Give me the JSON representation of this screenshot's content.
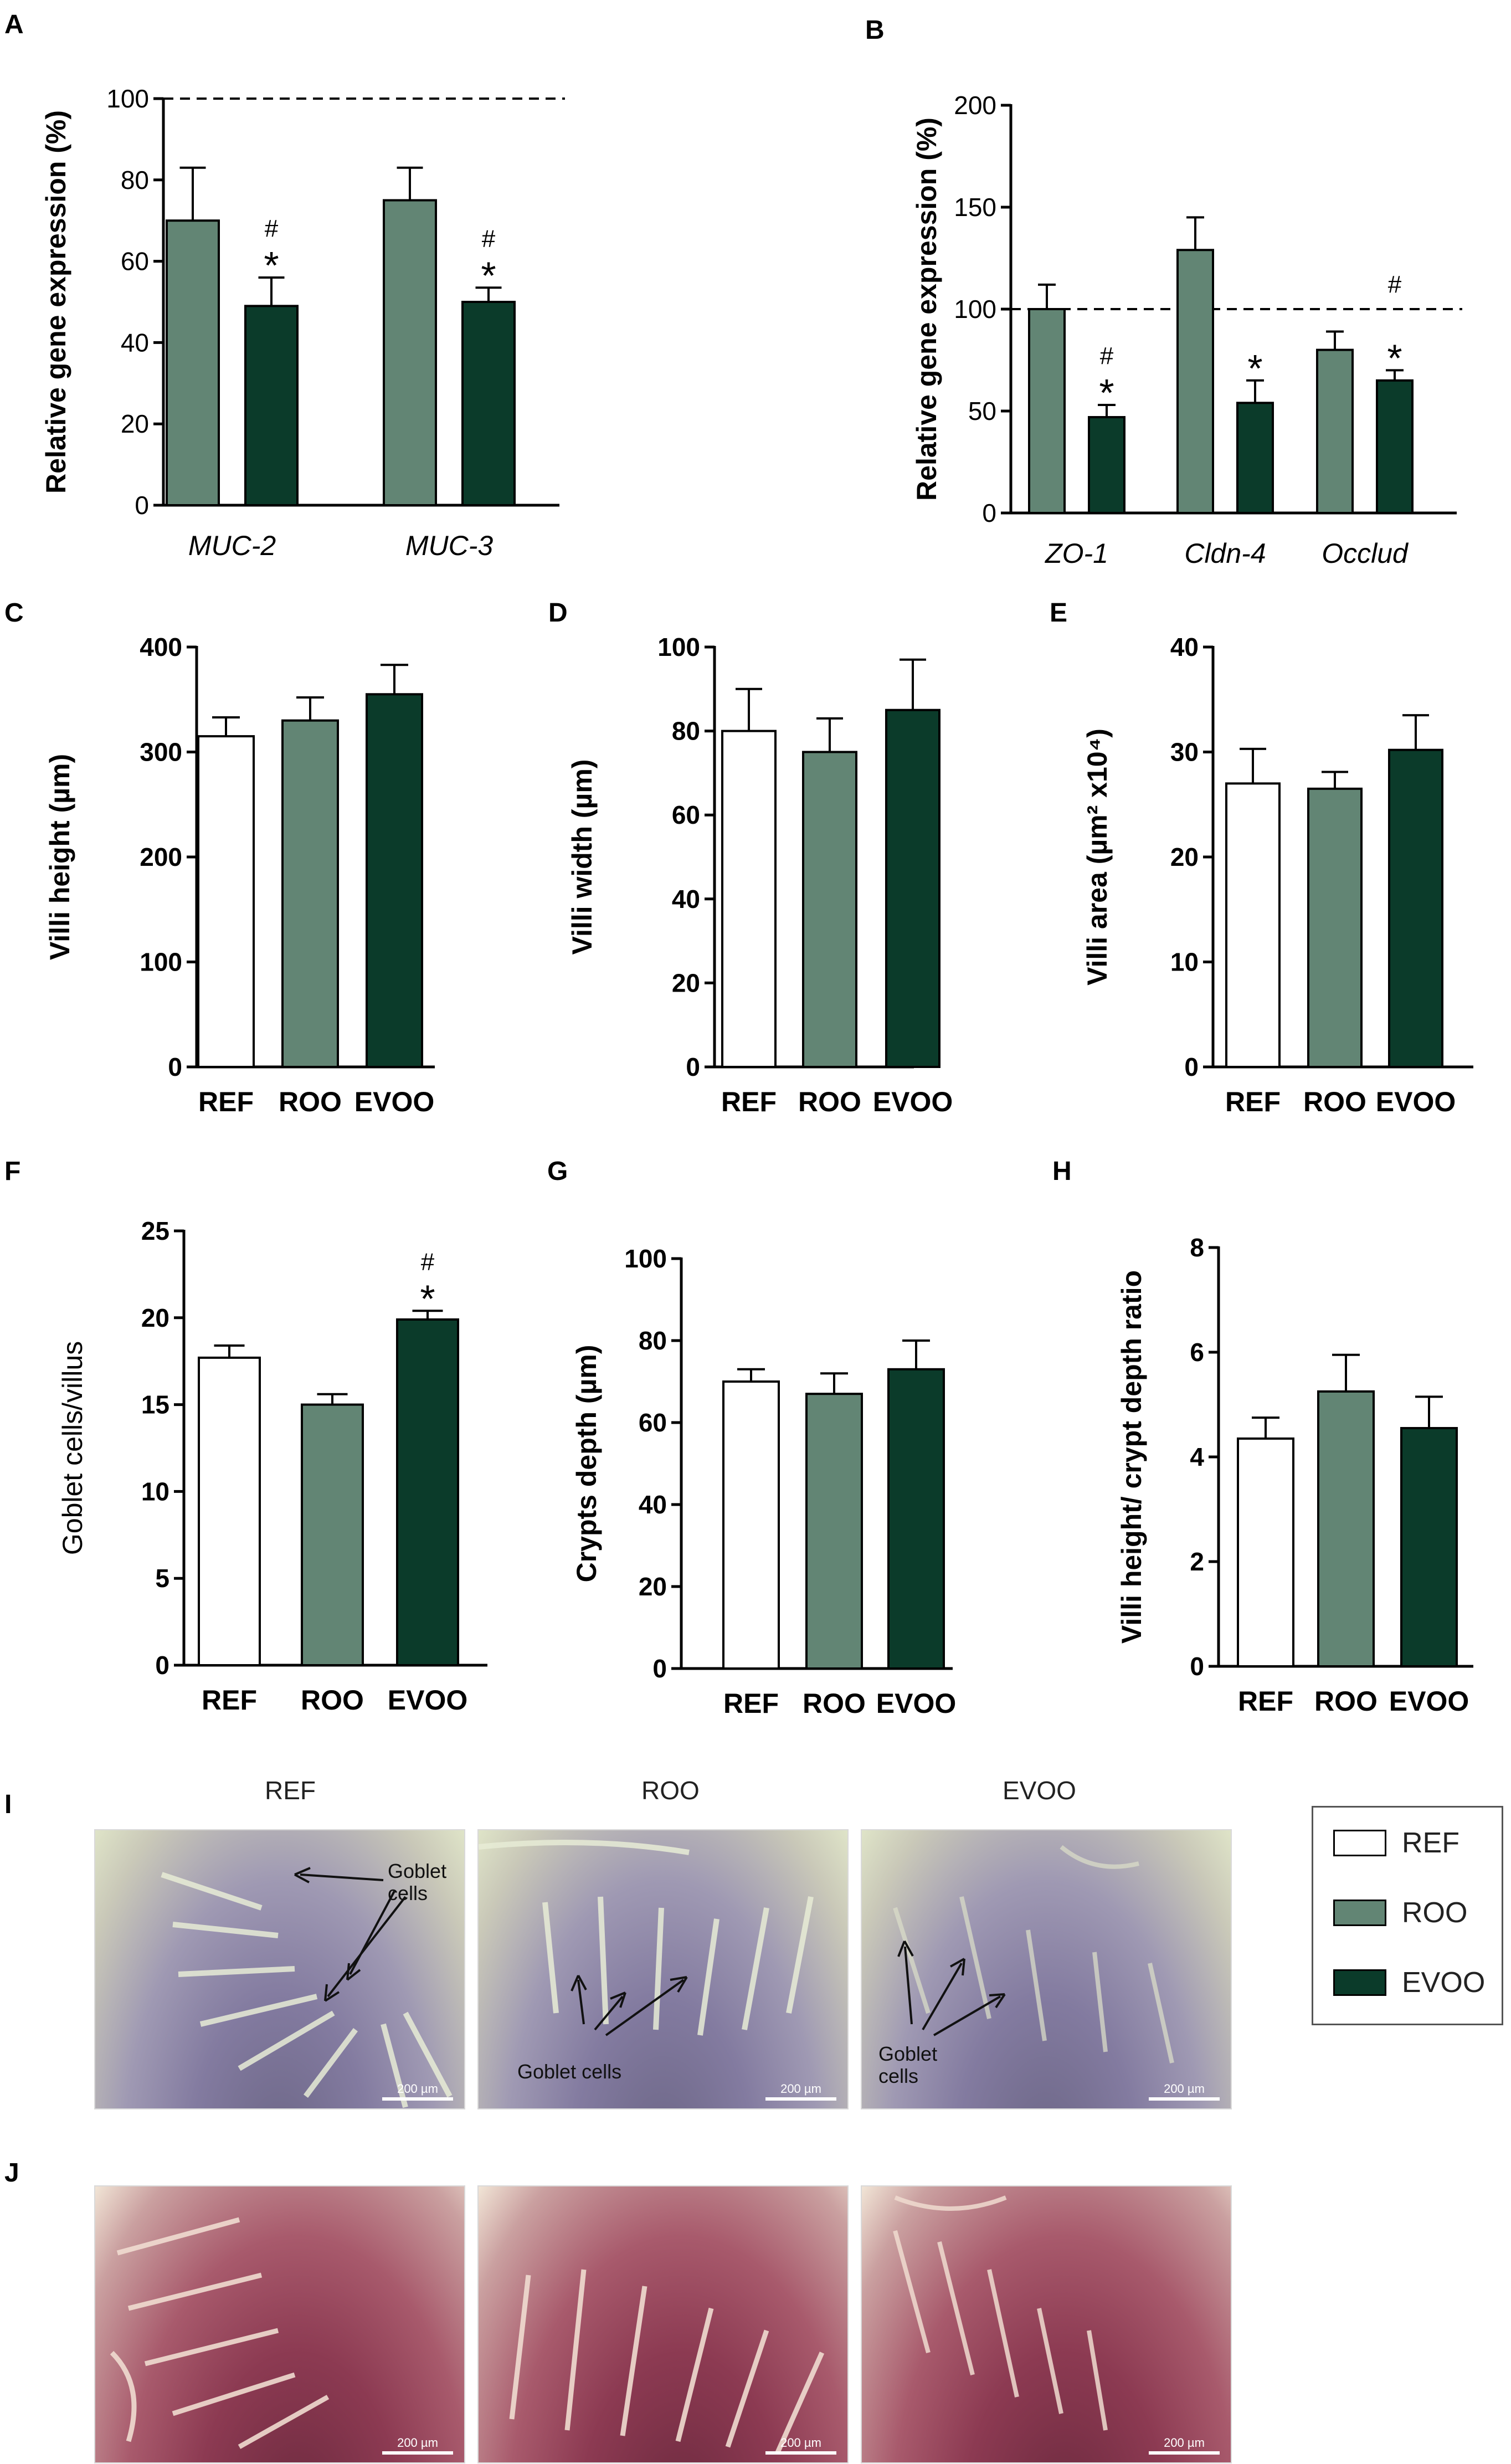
{
  "colors": {
    "REF": "#ffffff",
    "ROO": "#628574",
    "EVOO": "#0b3b2a",
    "axis": "#000000"
  },
  "chart_data": [
    {
      "panel": "A",
      "type": "bar",
      "categories": [
        "MUC-2",
        "MUC-3"
      ],
      "italic_categories": true,
      "ylabel": "Relative gene expression (%)",
      "ylim": [
        0,
        100
      ],
      "yticks": [
        0,
        20,
        40,
        60,
        80,
        100
      ],
      "ref_line": 100,
      "series": [
        {
          "group": "ROO",
          "values": [
            70,
            75
          ],
          "errors": [
            13,
            8
          ]
        },
        {
          "group": "EVOO",
          "values": [
            49,
            50
          ],
          "errors": [
            7,
            3.5
          ]
        }
      ],
      "annotations": [
        {
          "category": 0,
          "group": "EVOO",
          "marks": [
            "*",
            "#"
          ]
        },
        {
          "category": 1,
          "group": "EVOO",
          "marks": [
            "*",
            "#"
          ]
        }
      ]
    },
    {
      "panel": "B",
      "type": "bar",
      "categories": [
        "ZO-1",
        "Cldn-4",
        "Occlud"
      ],
      "italic_categories": true,
      "ylabel": "Relative gene expression (%)",
      "ylim": [
        0,
        200
      ],
      "yticks": [
        0,
        50,
        100,
        150,
        200
      ],
      "ref_line": 100,
      "series": [
        {
          "group": "ROO",
          "values": [
            100,
            129,
            80
          ],
          "errors": [
            12,
            16,
            9
          ]
        },
        {
          "group": "EVOO",
          "values": [
            47,
            54,
            65
          ],
          "errors": [
            6,
            11,
            5
          ]
        }
      ],
      "annotations": [
        {
          "category": 0,
          "group": "EVOO",
          "marks": [
            "*",
            "#"
          ]
        },
        {
          "category": 1,
          "group": "EVOO",
          "marks": [
            "*"
          ]
        },
        {
          "category": 2,
          "group": "EVOO",
          "marks": [
            "*"
          ]
        },
        {
          "category": 2,
          "group": "EVOO",
          "marks": [
            "#"
          ],
          "high": true
        }
      ]
    },
    {
      "panel": "C",
      "type": "bar",
      "categories": [
        "REF",
        "ROO",
        "EVOO"
      ],
      "ylabel": "Villi height (µm)",
      "bold_labels": true,
      "ylim": [
        0,
        400
      ],
      "yticks": [
        0,
        100,
        200,
        300,
        400
      ],
      "values": [
        315,
        330,
        355
      ],
      "errors": [
        18,
        22,
        28
      ]
    },
    {
      "panel": "D",
      "type": "bar",
      "categories": [
        "REF",
        "ROO",
        "EVOO"
      ],
      "ylabel": "Villi width (µm)",
      "bold_labels": true,
      "ylim": [
        0,
        100
      ],
      "yticks": [
        0,
        20,
        40,
        60,
        80,
        100
      ],
      "values": [
        80,
        75,
        85
      ],
      "errors": [
        10,
        8,
        12
      ]
    },
    {
      "panel": "E",
      "type": "bar",
      "categories": [
        "REF",
        "ROO",
        "EVOO"
      ],
      "ylabel": "Villi area (µm² x10⁴)",
      "bold_labels": true,
      "ylim": [
        0,
        40
      ],
      "yticks": [
        0,
        10,
        20,
        30,
        40
      ],
      "values": [
        27,
        26.5,
        30.2
      ],
      "errors": [
        3.3,
        1.6,
        3.3
      ]
    },
    {
      "panel": "F",
      "type": "bar",
      "categories": [
        "REF",
        "ROO",
        "EVOO"
      ],
      "ylabel": "Goblet cells/villus",
      "bold_labels": false,
      "bold_ticks": true,
      "ylim": [
        0,
        25
      ],
      "yticks": [
        0,
        5,
        10,
        15,
        20,
        25
      ],
      "values": [
        17.7,
        15.0,
        19.9
      ],
      "errors": [
        0.7,
        0.6,
        0.5
      ],
      "annotations": [
        {
          "category": 2,
          "marks": [
            "*",
            "#"
          ]
        }
      ]
    },
    {
      "panel": "G",
      "type": "bar",
      "categories": [
        "REF",
        "ROO",
        "EVOO"
      ],
      "ylabel": "Crypts depth (µm)",
      "bold_labels": true,
      "ylim": [
        0,
        100
      ],
      "yticks": [
        0,
        20,
        40,
        60,
        80,
        100
      ],
      "values": [
        70,
        67,
        73
      ],
      "errors": [
        3,
        5,
        7
      ]
    },
    {
      "panel": "H",
      "type": "bar",
      "categories": [
        "REF",
        "ROO",
        "EVOO"
      ],
      "ylabel": "Villi height/ crypt depth ratio",
      "bold_labels": true,
      "ylim": [
        0,
        8
      ],
      "yticks": [
        0,
        2,
        4,
        6,
        8
      ],
      "values": [
        4.35,
        5.25,
        4.55
      ],
      "errors": [
        0.4,
        0.7,
        0.6
      ]
    }
  ],
  "micrographs": {
    "panel_i_label": "I",
    "panel_j_label": "J",
    "columns": [
      "REF",
      "ROO",
      "EVOO"
    ],
    "scale_bar": "200 µm",
    "goblet_label_ref": "Goblet\ncells",
    "goblet_label_roo": "Goblet cells",
    "goblet_label_evoo": "Goblet\ncells"
  },
  "legend": {
    "items": [
      "REF",
      "ROO",
      "EVOO"
    ]
  }
}
